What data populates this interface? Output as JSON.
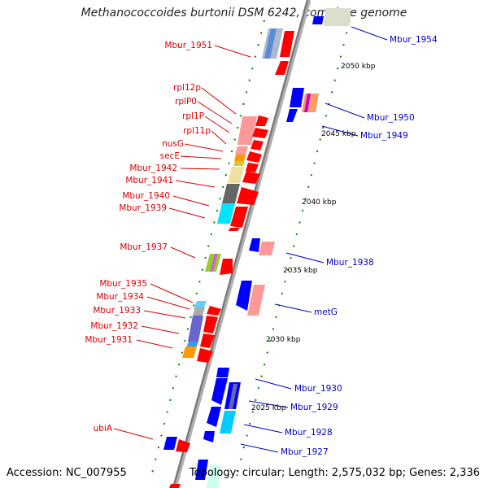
{
  "title": "Methanococcoides burtonii DSM 6242, complete genome",
  "footer": {
    "accession": "Accession: NC_007955",
    "info": "Topology: circular; Length: 2,575,032 bp; Genes: 2,336"
  },
  "kbp_labels": [
    {
      "text": "2050 kbp"
    },
    {
      "text": "2045 kbp"
    },
    {
      "text": "2040 kbp"
    },
    {
      "text": "2035 kbp"
    },
    {
      "text": "2030 kbp"
    },
    {
      "text": "2025 kbp"
    }
  ],
  "genes_left": [
    {
      "label": "Mbur_1951"
    },
    {
      "label": "rpl12p"
    },
    {
      "label": "rplP0"
    },
    {
      "label": "rpl1P"
    },
    {
      "label": "rpl11p"
    },
    {
      "label": "nusG"
    },
    {
      "label": "secE"
    },
    {
      "label": "Mbur_1942"
    },
    {
      "label": "Mbur_1941"
    },
    {
      "label": "Mbur_1940"
    },
    {
      "label": "Mbur_1939"
    },
    {
      "label": "Mbur_1937"
    },
    {
      "label": "Mbur_1935"
    },
    {
      "label": "Mbur_1934"
    },
    {
      "label": "Mbur_1933"
    },
    {
      "label": "Mbur_1932"
    },
    {
      "label": "Mbur_1931"
    },
    {
      "label": "ubiA"
    }
  ],
  "genes_right": [
    {
      "label": "Mbur_1954"
    },
    {
      "label": "Mbur_1950"
    },
    {
      "label": "Mbur_1949"
    },
    {
      "label": "Mbur_1938"
    },
    {
      "label": "metG"
    },
    {
      "label": "Mbur_1930"
    },
    {
      "label": "Mbur_1929"
    },
    {
      "label": "Mbur_1928"
    },
    {
      "label": "Mbur_1927"
    }
  ],
  "colors": {
    "forward_strand": "#ff0000",
    "reverse_strand": "#0000ff",
    "backbone": "#888888",
    "tick": "#008800",
    "label_left": "#dd0000",
    "label_right": "#0000cc"
  }
}
